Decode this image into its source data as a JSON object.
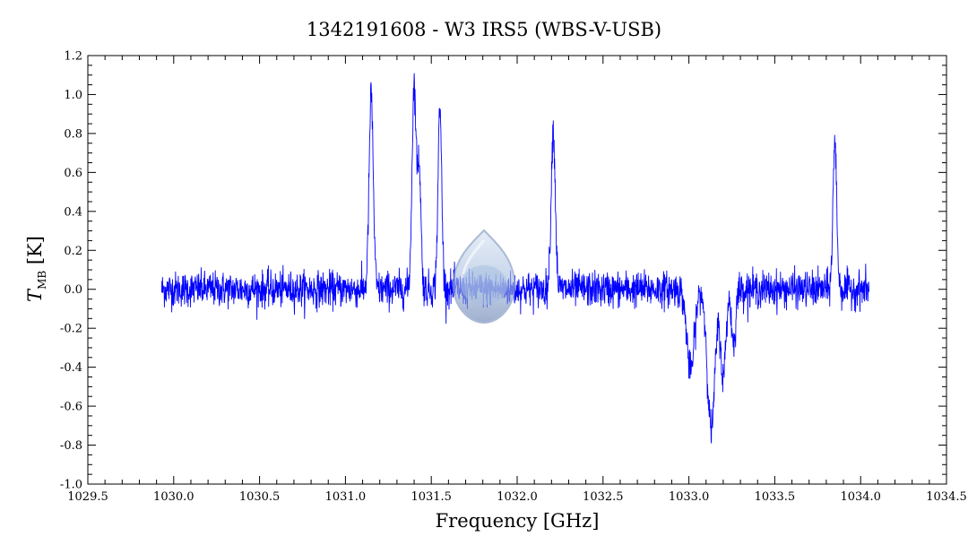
{
  "chart_data": {
    "type": "line",
    "title": "1342191608 - W3 IRS5 (WBS-V-USB)",
    "xlabel": "Frequency [GHz]",
    "ylabel_main": "T",
    "ylabel_sub": "MB",
    "ylabel_unit": "[K]",
    "xlim": [
      1029.5,
      1034.5
    ],
    "ylim": [
      -1.0,
      1.2
    ],
    "xticks": [
      "1029.5",
      "1030.0",
      "1030.5",
      "1031.0",
      "1031.5",
      "1032.0",
      "1032.5",
      "1033.0",
      "1033.5",
      "1034.0",
      "1034.5"
    ],
    "yticks": [
      "-1.0",
      "-0.8",
      "-0.6",
      "-0.4",
      "-0.2",
      "0.0",
      "0.2",
      "0.4",
      "0.6",
      "0.8",
      "1.0",
      "1.2"
    ],
    "grid": false,
    "series": [
      {
        "color": "#0000ff",
        "x_range": [
          1029.93,
          1034.05
        ],
        "noise_rms": 0.045,
        "features": [
          {
            "center": 1031.15,
            "peak": 1.0,
            "width": 0.012
          },
          {
            "center": 1031.4,
            "peak": 1.05,
            "width": 0.012
          },
          {
            "center": 1031.43,
            "peak": 0.62,
            "width": 0.01
          },
          {
            "center": 1031.55,
            "peak": 0.92,
            "width": 0.011
          },
          {
            "center": 1032.21,
            "peak": 0.82,
            "width": 0.012
          },
          {
            "center": 1033.85,
            "peak": 0.75,
            "width": 0.011
          },
          {
            "center": 1033.01,
            "peak": -0.42,
            "width": 0.022
          },
          {
            "center": 1033.13,
            "peak": -0.72,
            "width": 0.022
          },
          {
            "center": 1033.2,
            "peak": -0.45,
            "width": 0.015
          },
          {
            "center": 1033.26,
            "peak": -0.28,
            "width": 0.012
          }
        ]
      }
    ]
  },
  "watermark": {
    "icon": "droplet-icon",
    "colors": [
      "#6f87b5",
      "#a8bfe0",
      "#d7e2f2"
    ]
  }
}
